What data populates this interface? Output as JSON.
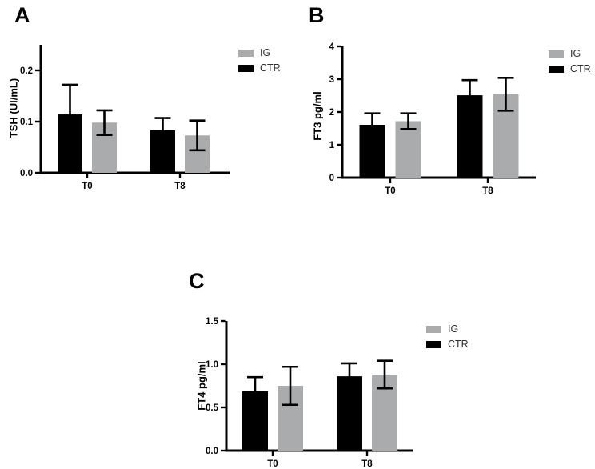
{
  "figure": {
    "background": "#ffffff",
    "bar_color_ctr": "#000000",
    "bar_color_ig": "#A9ABAD",
    "axis_color": "#000000"
  },
  "chart_data": [
    {
      "type": "bar",
      "panel": "A",
      "title": "",
      "xlabel": "",
      "ylabel": "TSH (UI/mL)",
      "categories": [
        "T0",
        "T8"
      ],
      "series": [
        {
          "name": "CTR",
          "color": "#000000",
          "values": [
            0.114,
            0.083
          ],
          "sd": [
            0.058,
            0.024
          ]
        },
        {
          "name": "IG",
          "color": "#A9ABAD",
          "values": [
            0.098,
            0.073
          ],
          "sd": [
            0.024,
            0.029
          ]
        }
      ],
      "error_bar_type": "sd-caps",
      "ylim": [
        0,
        0.25
      ],
      "yticks": [
        {
          "v": 0,
          "label": "0.0"
        },
        {
          "v": 0.1,
          "label": "0.1"
        },
        {
          "v": 0.2,
          "label": "0.2"
        }
      ],
      "grid": false,
      "legend": {
        "position": "top-right",
        "items": [
          {
            "label": "IG",
            "color": "#A9ABAD"
          },
          {
            "label": "CTR",
            "color": "#000000"
          }
        ]
      }
    },
    {
      "type": "bar",
      "panel": "B",
      "title": "",
      "xlabel": "",
      "ylabel": "FT3 pg/ml",
      "categories": [
        "T0",
        "T8"
      ],
      "series": [
        {
          "name": "CTR",
          "color": "#000000",
          "values": [
            1.61,
            2.51
          ],
          "sd": [
            0.35,
            0.46
          ]
        },
        {
          "name": "IG",
          "color": "#A9ABAD",
          "values": [
            1.72,
            2.54
          ],
          "sd": [
            0.24,
            0.5
          ]
        }
      ],
      "error_bar_type": "sd-caps",
      "ylim": [
        0,
        4
      ],
      "yticks": [
        {
          "v": 0,
          "label": "0"
        },
        {
          "v": 1,
          "label": "1"
        },
        {
          "v": 2,
          "label": "2"
        },
        {
          "v": 3,
          "label": "3"
        },
        {
          "v": 4,
          "label": "4"
        }
      ],
      "grid": false,
      "legend": {
        "position": "top-right",
        "items": [
          {
            "label": "IG",
            "color": "#A9ABAD"
          },
          {
            "label": "CTR",
            "color": "#000000"
          }
        ]
      }
    },
    {
      "type": "bar",
      "panel": "C",
      "title": "",
      "xlabel": "",
      "ylabel": "FT4 pg/ml",
      "categories": [
        "T0",
        "T8"
      ],
      "series": [
        {
          "name": "CTR",
          "color": "#000000",
          "values": [
            0.69,
            0.86
          ],
          "sd": [
            0.16,
            0.15
          ]
        },
        {
          "name": "IG",
          "color": "#A9ABAD",
          "values": [
            0.75,
            0.88
          ],
          "sd": [
            0.22,
            0.16
          ]
        }
      ],
      "error_bar_type": "sd-caps",
      "ylim": [
        0,
        1.5
      ],
      "yticks": [
        {
          "v": 0,
          "label": "0.0"
        },
        {
          "v": 0.5,
          "label": "0.5"
        },
        {
          "v": 1.0,
          "label": "1.0"
        },
        {
          "v": 1.5,
          "label": "1.5"
        }
      ],
      "grid": false,
      "legend": {
        "position": "right",
        "items": [
          {
            "label": "IG",
            "color": "#A9ABAD"
          },
          {
            "label": "CTR",
            "color": "#000000"
          }
        ]
      }
    }
  ]
}
